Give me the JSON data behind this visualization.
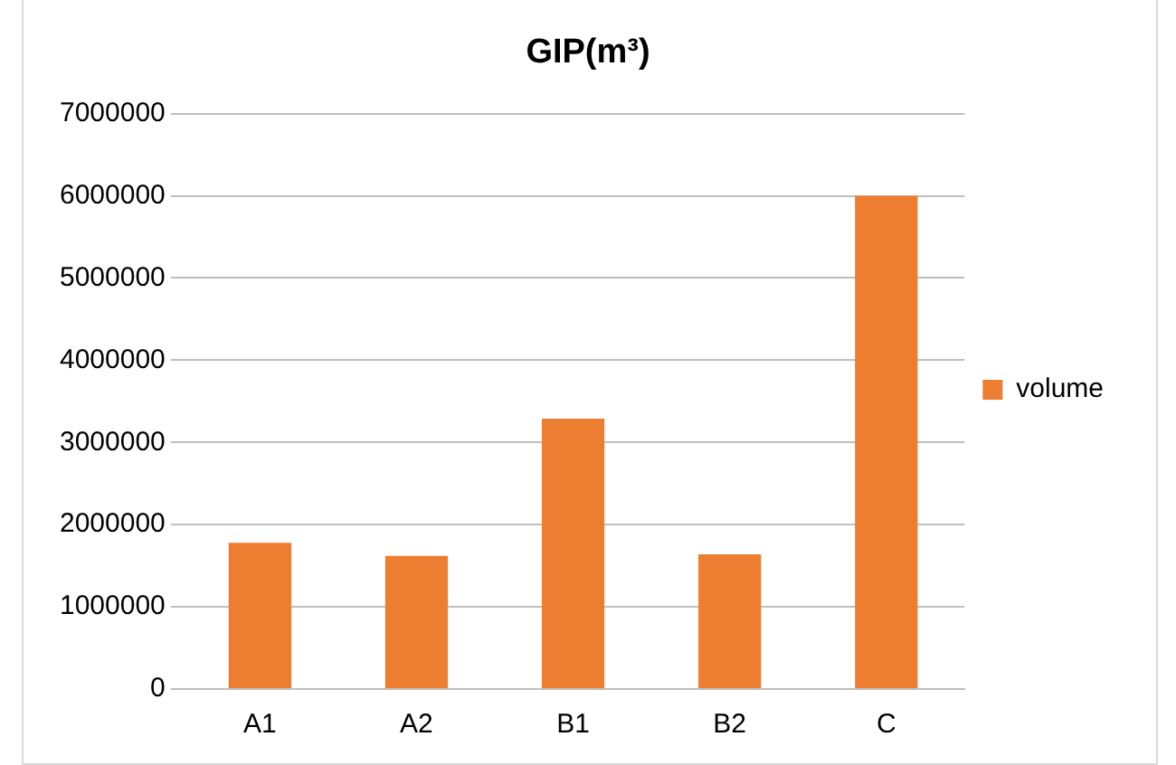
{
  "chart_data": {
    "type": "bar",
    "title": "GIP(m³)",
    "categories": [
      "A1",
      "A2",
      "B1",
      "B2",
      "C"
    ],
    "series": [
      {
        "name": "volume",
        "color": "#ed7d31",
        "values": [
          1780000,
          1620000,
          3290000,
          1640000,
          6000000
        ]
      }
    ],
    "ylim": [
      0,
      7000000
    ],
    "yticks": [
      0,
      1000000,
      2000000,
      3000000,
      4000000,
      5000000,
      6000000,
      7000000
    ],
    "grid": "y",
    "legend": "right"
  }
}
